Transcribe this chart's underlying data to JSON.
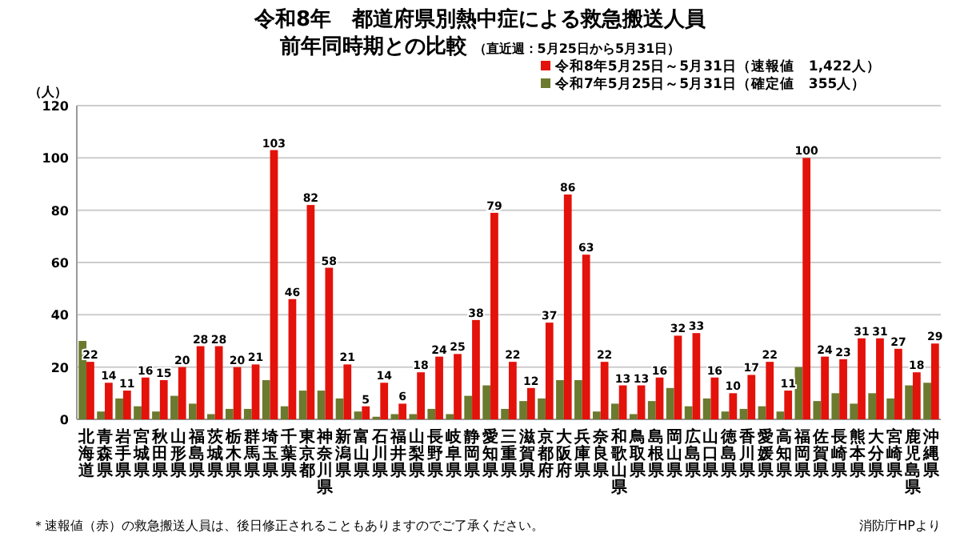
{
  "chart_data": {
    "type": "bar",
    "title": "令和8年　都道府県別熱中症による救急搬送人員",
    "subtitle": "前年同時期との比較",
    "ylabel": "（人）",
    "categories": [
      "北海道",
      "青森県",
      "岩手県",
      "宮城県",
      "秋田県",
      "山形県",
      "福島県",
      "茨城県",
      "栃木県",
      "群馬県",
      "埼玉県",
      "千葉県",
      "東京都",
      "神奈川県",
      "新潟県",
      "富山県",
      "石川県",
      "福井県",
      "山梨県",
      "長野県",
      "岐阜県",
      "静岡県",
      "愛知県",
      "三重県",
      "滋賀県",
      "京都府",
      "大阪府",
      "兵庫県",
      "奈良県",
      "和歌山県",
      "鳥取県",
      "島根県",
      "岡山県",
      "広島県",
      "山口県",
      "徳島県",
      "香川県",
      "愛媛県",
      "高知県",
      "福岡県",
      "佐賀県",
      "長崎県",
      "熊本県",
      "大分県",
      "宮崎県",
      "鹿児島県",
      "沖縄県"
    ],
    "series": [
      {
        "name": "令和7年5月25日～5月31日（確定値　355人）",
        "color": "#6b7a2e",
        "values": [
          30,
          3,
          8,
          5,
          3,
          9,
          6,
          2,
          4,
          4,
          15,
          5,
          11,
          11,
          8,
          3,
          1,
          2,
          2,
          4,
          2,
          9,
          13,
          4,
          7,
          8,
          15,
          15,
          3,
          6,
          2,
          7,
          12,
          5,
          8,
          3,
          4,
          5,
          3,
          20,
          7,
          10,
          6,
          10,
          8,
          13,
          14
        ]
      },
      {
        "name": "令和8年5月25日～5月31日（速報値　1,422人）",
        "color": "#e3120b",
        "values": [
          22,
          14,
          11,
          16,
          15,
          20,
          28,
          28,
          20,
          21,
          103,
          46,
          82,
          58,
          21,
          5,
          14,
          6,
          18,
          24,
          25,
          38,
          79,
          22,
          12,
          37,
          86,
          63,
          22,
          13,
          13,
          16,
          32,
          33,
          16,
          10,
          17,
          22,
          11,
          100,
          24,
          23,
          31,
          31,
          27,
          18,
          29
        ],
        "value_labels": [
          "22",
          "14",
          "11",
          "16",
          "15",
          "20",
          "28",
          "28",
          "20",
          "21",
          "103",
          "46",
          "82",
          "58",
          "21",
          "5",
          "14",
          "6",
          "18",
          "24",
          "25",
          "38",
          "79",
          "22",
          "12",
          "37",
          "86",
          "63",
          "22",
          "13",
          "13",
          "16",
          "32",
          "33",
          "16",
          "10",
          "17",
          "22",
          "11",
          "100",
          "24",
          "23",
          "31",
          "31",
          "27",
          "18",
          "29"
        ]
      }
    ],
    "ylim": [
      0,
      120
    ],
    "yticks": [
      0,
      20,
      40,
      60,
      80,
      100,
      120
    ],
    "grid": "y",
    "legend": "top right",
    "annotations": [
      "（直近週：5月25日から5月31日）",
      "＊速報値（赤）の救急搬送人員は、後日修正されることもありますのでご了承ください。",
      "消防庁HPより"
    ]
  }
}
